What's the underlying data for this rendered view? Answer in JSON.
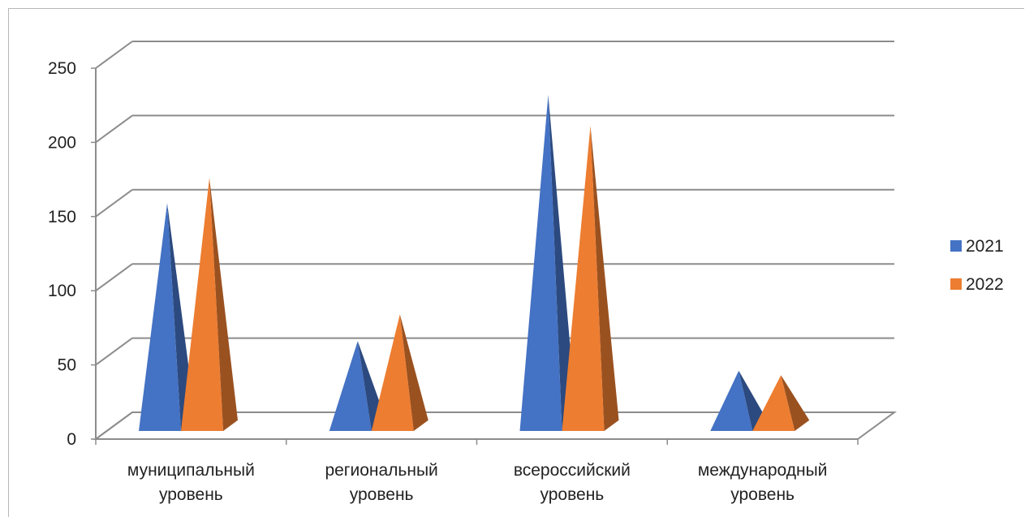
{
  "chart_data": {
    "type": "bar",
    "style": "3d-pyramid",
    "categories": [
      [
        "муниципальный",
        "уровень"
      ],
      [
        "региональный",
        "уровень"
      ],
      [
        "всероссийский",
        "уровень"
      ],
      [
        "международный",
        "уровень"
      ]
    ],
    "series": [
      {
        "name": "2021",
        "values": [
          150,
          57,
          223,
          37
        ],
        "color": "#4472C4"
      },
      {
        "name": "2022",
        "values": [
          167,
          75,
          202,
          34
        ],
        "color": "#ED7D31"
      }
    ],
    "ylim": [
      0,
      250
    ],
    "yticks": [
      "0",
      "50",
      "100",
      "150",
      "200",
      "250"
    ],
    "grid": true,
    "legend": "right"
  }
}
